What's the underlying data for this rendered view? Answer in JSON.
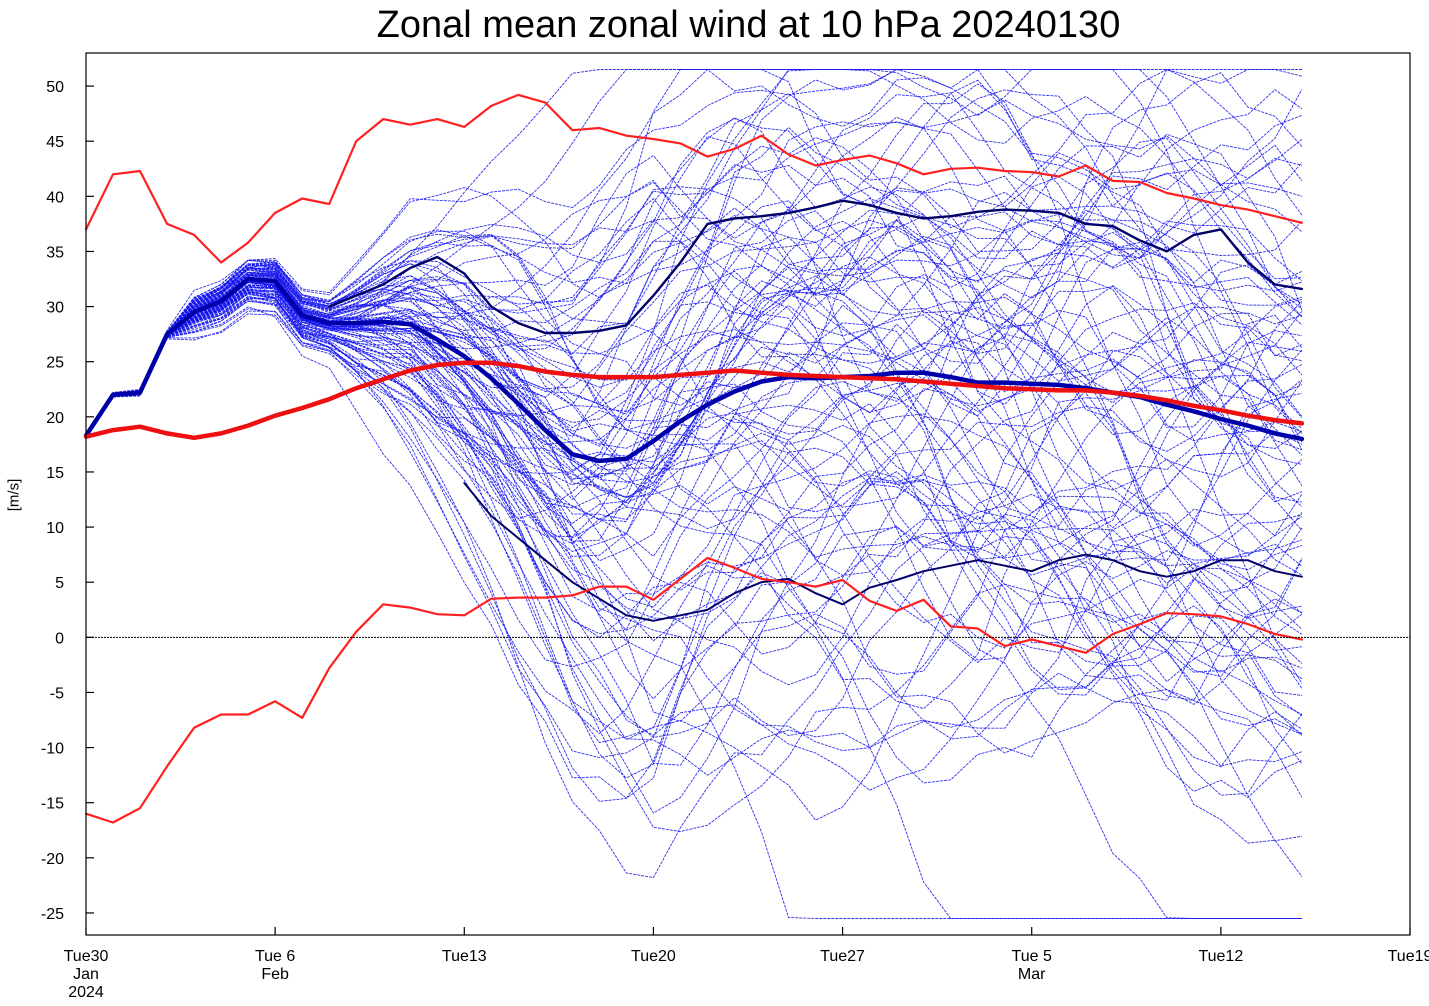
{
  "chart_data": {
    "type": "line",
    "title": "Zonal mean zonal wind at 10 hPa 20240130",
    "xlabel": "",
    "ylabel": "[m/s]",
    "ylim": [
      -27,
      53
    ],
    "xlim_days": [
      0,
      49
    ],
    "x_start_date": "2024-01-30",
    "grid": false,
    "reference_line": 0,
    "yticks": [
      "50",
      "45",
      "40",
      "35",
      "30",
      "25",
      "20",
      "15",
      "10",
      "5",
      "0",
      "-5",
      "-10",
      "-15",
      "-20",
      "-25"
    ],
    "ytick_values": [
      50,
      45,
      40,
      35,
      30,
      25,
      20,
      15,
      10,
      5,
      0,
      -5,
      -10,
      -15,
      -20,
      -25
    ],
    "xticks": [
      {
        "day": 0,
        "lines": [
          "Tue30",
          "Jan",
          "2024"
        ]
      },
      {
        "day": 7,
        "lines": [
          "Tue 6",
          "Feb"
        ]
      },
      {
        "day": 14,
        "lines": [
          "Tue13"
        ]
      },
      {
        "day": 21,
        "lines": [
          "Tue20"
        ]
      },
      {
        "day": 28,
        "lines": [
          "Tue27"
        ]
      },
      {
        "day": 35,
        "lines": [
          "Tue 5",
          "Mar"
        ]
      },
      {
        "day": 42,
        "lines": [
          "Tue12"
        ]
      },
      {
        "day": 49,
        "lines": [
          "Tue19"
        ]
      }
    ],
    "series": [
      {
        "role": "climatology-max",
        "color": "#ff2020",
        "x": [
          0,
          1,
          2,
          3,
          4,
          5,
          6,
          7,
          8,
          9,
          10,
          11,
          12,
          13,
          14,
          15,
          16,
          17,
          18,
          19,
          20,
          21,
          22,
          23,
          24,
          25,
          26,
          27,
          28,
          29,
          30,
          31,
          32,
          33,
          34,
          35,
          36,
          37,
          38,
          39,
          40,
          41,
          42,
          43,
          44,
          45
        ],
        "values": [
          37,
          42,
          42.3,
          37.5,
          36.5,
          34,
          35.8,
          38.5,
          39.8,
          39.3,
          45,
          47,
          46.5,
          47,
          46.3,
          48.2,
          49.2,
          48.5,
          46,
          46.2,
          45.5,
          45.2,
          44.8,
          43.6,
          44.3,
          45.5,
          43.8,
          42.8,
          43.3,
          43.7,
          43,
          42,
          42.5,
          42.6,
          42.3,
          42.2,
          41.8,
          42.8,
          41.4,
          41.3,
          40.3,
          39.8,
          39.2,
          38.8,
          38.2,
          37.6
        ]
      },
      {
        "role": "climatology-min",
        "color": "#ff2020",
        "x": [
          0,
          1,
          2,
          3,
          4,
          5,
          6,
          7,
          8,
          9,
          10,
          11,
          12,
          13,
          14,
          15,
          16,
          17,
          18,
          19,
          20,
          21,
          22,
          23,
          24,
          25,
          26,
          27,
          28,
          29,
          30,
          31,
          32,
          33,
          34,
          35,
          36,
          37,
          38,
          39,
          40,
          41,
          42,
          43,
          44,
          45
        ],
        "values": [
          -16,
          -16.8,
          -15.5,
          -11.7,
          -8.2,
          -7,
          -7,
          -5.8,
          -7.3,
          -2.8,
          0.5,
          3,
          2.7,
          2.1,
          2.0,
          3.5,
          3.6,
          3.6,
          3.8,
          4.6,
          4.6,
          3.4,
          5.3,
          7.2,
          6.3,
          5.3,
          5,
          4.6,
          5.2,
          3.3,
          2.4,
          3.4,
          1.0,
          0.8,
          -0.8,
          -0.2,
          -0.8,
          -1.4,
          0.3,
          1.2,
          2.2,
          2.1,
          1.9,
          1.2,
          0.3,
          -0.2
        ]
      },
      {
        "role": "climatology-mean",
        "color": "#ee1010",
        "x": [
          0,
          1,
          2,
          3,
          4,
          5,
          6,
          7,
          8,
          9,
          10,
          11,
          12,
          13,
          14,
          15,
          16,
          17,
          18,
          19,
          20,
          21,
          22,
          23,
          24,
          25,
          26,
          27,
          28,
          29,
          30,
          31,
          32,
          33,
          34,
          35,
          36,
          37,
          38,
          39,
          40,
          41,
          42,
          43,
          44,
          45
        ],
        "values": [
          18.2,
          18.8,
          19.1,
          18.5,
          18.1,
          18.5,
          19.2,
          20.1,
          20.8,
          21.6,
          22.6,
          23.4,
          24.2,
          24.7,
          24.9,
          24.9,
          24.6,
          24.1,
          23.8,
          23.6,
          23.6,
          23.6,
          23.8,
          24.0,
          24.2,
          24.0,
          23.8,
          23.7,
          23.6,
          23.5,
          23.4,
          23.2,
          23.0,
          22.8,
          22.6,
          22.5,
          22.4,
          22.4,
          22.2,
          21.9,
          21.5,
          21.0,
          20.6,
          20.1,
          19.7,
          19.4
        ]
      },
      {
        "role": "ensemble-mean",
        "color": "#0000aa",
        "x": [
          0,
          1,
          2,
          3,
          4,
          5,
          6,
          7,
          8,
          9,
          10,
          11,
          12,
          13,
          14,
          15,
          16,
          17,
          18,
          19,
          20,
          21,
          22,
          23,
          24,
          25,
          26,
          27,
          28,
          29,
          30,
          31,
          32,
          33,
          34,
          35,
          36,
          37,
          38,
          39,
          40,
          41,
          42,
          43,
          44,
          45
        ],
        "values": [
          18.3,
          22,
          22.2,
          27.5,
          29.5,
          30.5,
          32.5,
          32.3,
          29.2,
          28.5,
          28.5,
          28.6,
          28.4,
          27,
          25.5,
          23.5,
          21.2,
          18.8,
          16.6,
          16,
          16.2,
          17.8,
          19.6,
          21.1,
          22.3,
          23.2,
          23.6,
          23.5,
          23.6,
          23.7,
          24,
          24,
          23.6,
          23.1,
          23.1,
          23,
          22.9,
          22.6,
          22.2,
          21.8,
          21.1,
          20.5,
          19.8,
          19.2,
          18.5,
          18
        ]
      },
      {
        "role": "control-forecast",
        "color": "#000066",
        "x": [
          9,
          10,
          11,
          12,
          13,
          14,
          15,
          16,
          17,
          18,
          19,
          20,
          21,
          22,
          23,
          24,
          25,
          26,
          27,
          28,
          29,
          30,
          31,
          32,
          33,
          34,
          35,
          36,
          37,
          38,
          39,
          40,
          41,
          42,
          43,
          44,
          45
        ],
        "values": [
          30,
          31,
          32,
          33.5,
          34.5,
          33,
          30,
          28.5,
          27.6,
          27.6,
          27.8,
          28.3,
          31,
          34,
          37.5,
          38,
          38.2,
          38.5,
          39,
          39.6,
          39.2,
          38.5,
          38,
          38.2,
          38.6,
          38.8,
          38.7,
          38.5,
          37.5,
          37.3,
          36,
          35,
          36.5,
          37,
          34,
          32,
          31.6
        ]
      },
      {
        "role": "member-low",
        "color": "#000066",
        "x": [
          14,
          15,
          16,
          17,
          18,
          19,
          20,
          21,
          22,
          23,
          24,
          25,
          26,
          27,
          28,
          29,
          30,
          31,
          32,
          33,
          34,
          35,
          36,
          37,
          38,
          39,
          40,
          41,
          42,
          43,
          44,
          45
        ],
        "values": [
          14,
          11,
          9,
          7,
          5,
          3.5,
          2,
          1.5,
          2,
          2.5,
          4,
          5,
          5.3,
          4,
          3,
          4.5,
          5.2,
          6,
          6.5,
          7,
          6.5,
          6,
          7,
          7.5,
          7,
          6,
          5.5,
          6,
          7,
          7,
          6,
          5.5
        ]
      }
    ]
  }
}
